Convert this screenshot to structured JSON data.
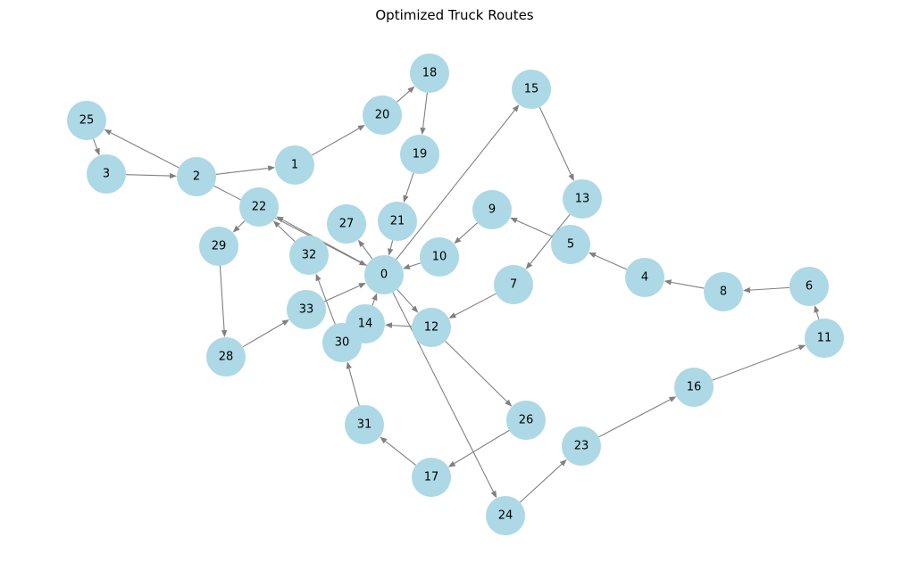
{
  "title": "Optimized Truck Routes",
  "colors": {
    "node_fill": "#add8e6",
    "edge": "#808080",
    "text": "#000000"
  },
  "nodes": [
    "0",
    "1",
    "2",
    "3",
    "4",
    "5",
    "6",
    "7",
    "8",
    "9",
    "10",
    "11",
    "12",
    "13",
    "14",
    "15",
    "16",
    "17",
    "18",
    "19",
    "20",
    "21",
    "22",
    "23",
    "24",
    "25",
    "26",
    "27",
    "28",
    "29",
    "30",
    "31",
    "32",
    "33"
  ],
  "edges": [
    [
      "3",
      "2"
    ],
    [
      "2",
      "25"
    ],
    [
      "25",
      "3"
    ],
    [
      "2",
      "1"
    ],
    [
      "1",
      "20"
    ],
    [
      "20",
      "18"
    ],
    [
      "18",
      "19"
    ],
    [
      "19",
      "21"
    ],
    [
      "21",
      "0"
    ],
    [
      "0",
      "27"
    ],
    [
      "0",
      "15"
    ],
    [
      "15",
      "13"
    ],
    [
      "13",
      "7"
    ],
    [
      "7",
      "12"
    ],
    [
      "12",
      "14"
    ],
    [
      "14",
      "0"
    ],
    [
      "0",
      "22"
    ],
    [
      "22",
      "29"
    ],
    [
      "29",
      "28"
    ],
    [
      "28",
      "33"
    ],
    [
      "33",
      "0"
    ],
    [
      "6",
      "8"
    ],
    [
      "8",
      "4"
    ],
    [
      "4",
      "5"
    ],
    [
      "5",
      "9"
    ],
    [
      "9",
      "10"
    ],
    [
      "10",
      "0"
    ],
    [
      "11",
      "6"
    ],
    [
      "16",
      "11"
    ],
    [
      "23",
      "16"
    ],
    [
      "24",
      "23"
    ],
    [
      "0",
      "24"
    ],
    [
      "12",
      "26"
    ],
    [
      "26",
      "17"
    ],
    [
      "17",
      "31"
    ],
    [
      "31",
      "30"
    ],
    [
      "30",
      "32"
    ],
    [
      "32",
      "22"
    ],
    [
      "2",
      "0"
    ],
    [
      "0",
      "12"
    ]
  ]
}
